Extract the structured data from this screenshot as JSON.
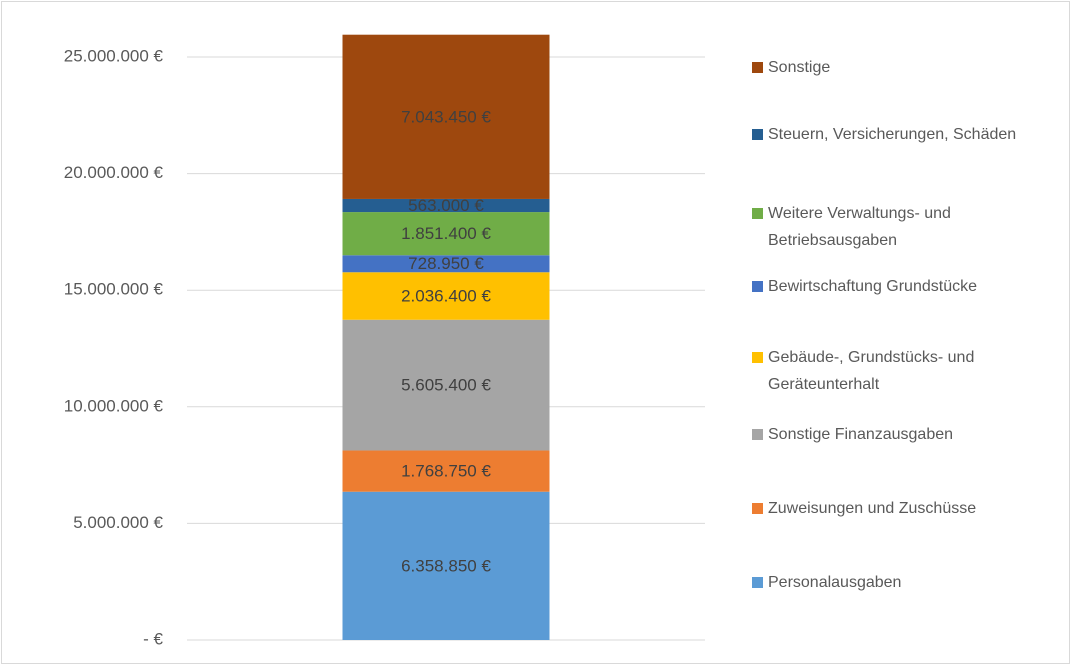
{
  "chart_data": {
    "type": "bar",
    "stacked": true,
    "categories": [
      null
    ],
    "series": [
      {
        "name": "Personalausgaben",
        "color": "#5b9bd5",
        "values": [
          6358850
        ],
        "value_labels": [
          "6.358.850 €"
        ]
      },
      {
        "name": "Zuweisungen und Zuschüsse",
        "color": "#ed7d31",
        "values": [
          1768750
        ],
        "value_labels": [
          "1.768.750 €"
        ]
      },
      {
        "name": "Sonstige Finanzausgaben",
        "color": "#a5a5a5",
        "values": [
          5605400
        ],
        "value_labels": [
          "5.605.400 €"
        ]
      },
      {
        "name": "Gebäude-, Grundstücks- und Geräteunterhalt",
        "color": "#ffc000",
        "values": [
          2036400
        ],
        "value_labels": [
          "2.036.400 €"
        ]
      },
      {
        "name": "Bewirtschaftung Grundstücke",
        "color": "#4472c4",
        "values": [
          728950
        ],
        "value_labels": [
          "728.950 €"
        ]
      },
      {
        "name": "Weitere Verwaltungs- und Betriebsausgaben",
        "color": "#70ad47",
        "values": [
          1851400
        ],
        "value_labels": [
          "1.851.400 €"
        ]
      },
      {
        "name": "Steuern, Versicherungen, Schäden",
        "color": "#255e91",
        "values": [
          563000
        ],
        "value_labels": [
          "563.000 €"
        ]
      },
      {
        "name": "Sonstige",
        "color": "#9e480e",
        "values": [
          7043450
        ],
        "value_labels": [
          "7.043.450 €"
        ]
      }
    ],
    "ylim": [
      0,
      25000000
    ],
    "yticks": [
      {
        "value": 0,
        "label": "-   €"
      },
      {
        "value": 5000000,
        "label": "5.000.000 €"
      },
      {
        "value": 10000000,
        "label": "10.000.000 €"
      },
      {
        "value": 15000000,
        "label": "15.000.000 €"
      },
      {
        "value": 20000000,
        "label": "20.000.000 €"
      },
      {
        "value": 25000000,
        "label": "25.000.000 €"
      }
    ],
    "grid": true,
    "legend": "right"
  }
}
